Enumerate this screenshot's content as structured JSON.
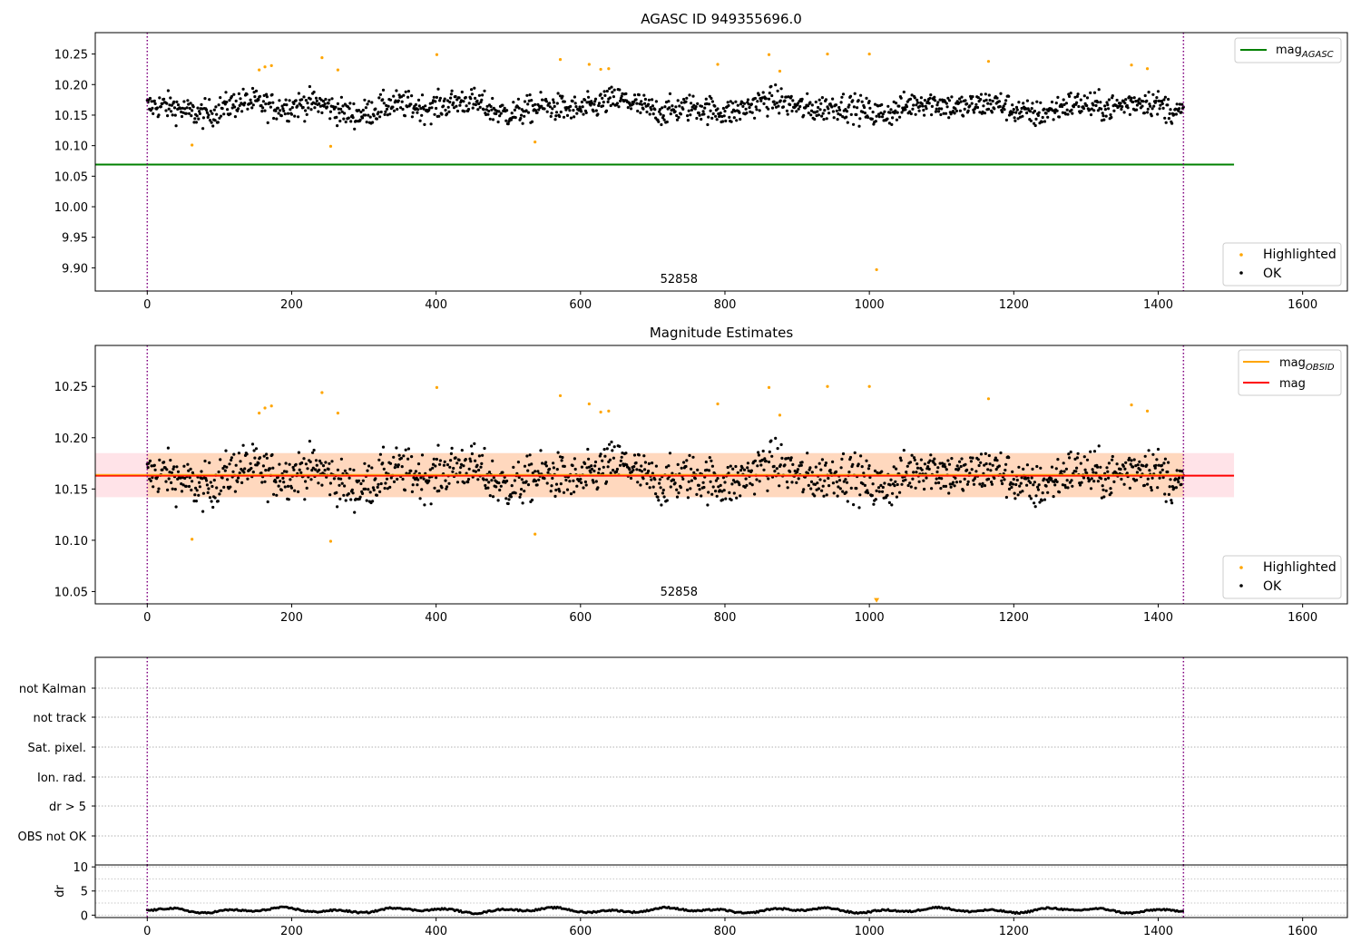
{
  "chart_data": [
    {
      "type": "scatter",
      "title": "AGASC ID 949355696.0",
      "xlim": [
        -72,
        1662
      ],
      "ylim": [
        9.862,
        10.285
      ],
      "xticks": [
        0,
        200,
        400,
        600,
        800,
        1000,
        1200,
        1400,
        1600
      ],
      "yticks": [
        9.9,
        9.95,
        10.0,
        10.05,
        10.1,
        10.15,
        10.2,
        10.25
      ],
      "ytick_labels": [
        "9.90",
        "9.95",
        "10.00",
        "10.05",
        "10.10",
        "10.15",
        "10.20",
        "10.25"
      ],
      "vlines": [
        0,
        1435
      ],
      "obsid_label": {
        "text": "52858",
        "x": 715
      },
      "hline": {
        "name": "mag",
        "subscript": "AGASC",
        "y": 10.069,
        "x_range": [
          -72,
          1505
        ],
        "color": "#008000"
      },
      "legend_lines": [
        {
          "label": "mag",
          "subscript": "AGASC",
          "color": "#008000"
        }
      ],
      "legend_points": [
        {
          "label": "Highlighted",
          "color": "#ffa500"
        },
        {
          "label": "OK",
          "color": "#000000"
        }
      ],
      "ok_series": {
        "n": 1435,
        "base": 10.163,
        "amplitude": 0.012,
        "noise": 0.022,
        "ymin": 10.105,
        "ymax": 10.215
      },
      "highlighted": [
        {
          "x": 62,
          "y": 10.101
        },
        {
          "x": 155,
          "y": 10.224
        },
        {
          "x": 163,
          "y": 10.229
        },
        {
          "x": 172,
          "y": 10.231
        },
        {
          "x": 242,
          "y": 10.244
        },
        {
          "x": 254,
          "y": 10.099
        },
        {
          "x": 264,
          "y": 10.224
        },
        {
          "x": 401,
          "y": 10.249
        },
        {
          "x": 537,
          "y": 10.106
        },
        {
          "x": 572,
          "y": 10.241
        },
        {
          "x": 612,
          "y": 10.233
        },
        {
          "x": 628,
          "y": 10.225
        },
        {
          "x": 639,
          "y": 10.226
        },
        {
          "x": 790,
          "y": 10.233
        },
        {
          "x": 861,
          "y": 10.249
        },
        {
          "x": 876,
          "y": 10.222
        },
        {
          "x": 942,
          "y": 10.25
        },
        {
          "x": 1000,
          "y": 10.25
        },
        {
          "x": 1010,
          "y": 9.897
        },
        {
          "x": 1165,
          "y": 10.238
        },
        {
          "x": 1363,
          "y": 10.232
        },
        {
          "x": 1385,
          "y": 10.226
        }
      ]
    },
    {
      "type": "scatter",
      "title": "Magnitude Estimates",
      "xlim": [
        -72,
        1662
      ],
      "ylim": [
        10.038,
        10.29
      ],
      "xticks": [
        0,
        200,
        400,
        600,
        800,
        1000,
        1200,
        1400,
        1600
      ],
      "yticks": [
        10.05,
        10.1,
        10.15,
        10.2,
        10.25
      ],
      "ytick_labels": [
        "10.05",
        "10.10",
        "10.15",
        "10.20",
        "10.25"
      ],
      "vlines": [
        0,
        1435
      ],
      "obsid_label": {
        "text": "52858",
        "x": 715
      },
      "mag_line": {
        "y": 10.163,
        "x_range": [
          -72,
          1505
        ],
        "color": "#ff0000"
      },
      "obsid_line": {
        "y": 10.164,
        "x_range": [
          -72,
          1435
        ],
        "color": "#ffa500"
      },
      "band": {
        "y0": 10.142,
        "y1": 10.185,
        "x_range": [
          -72,
          1505
        ],
        "inner_x_range": [
          0,
          1435
        ]
      },
      "arrow_marker": {
        "x": 1010,
        "y": 10.041,
        "color": "#ffa500"
      },
      "legend_lines": [
        {
          "label": "mag",
          "subscript": "OBSID",
          "color": "#ffa500"
        },
        {
          "label": "mag",
          "subscript": "",
          "color": "#ff0000"
        }
      ],
      "legend_points": [
        {
          "label": "Highlighted",
          "color": "#ffa500"
        },
        {
          "label": "OK",
          "color": "#000000"
        }
      ]
    },
    {
      "type": "line",
      "flag_labels": [
        "not Kalman",
        "not track",
        "Sat. pixel.",
        "Ion. rad.",
        "dr > 5",
        "OBS not OK"
      ],
      "ylabel": "dr",
      "ylim": [
        -0.5,
        10.4
      ],
      "yticks": [
        0,
        5,
        10
      ],
      "xlim": [
        -72,
        1662
      ],
      "xticks": [
        0,
        200,
        400,
        600,
        800,
        1000,
        1200,
        1400,
        1600
      ],
      "vlines": [
        0,
        1435
      ],
      "dr_series": {
        "n": 1435,
        "base": 1.0,
        "amplitude": 0.6
      }
    }
  ]
}
